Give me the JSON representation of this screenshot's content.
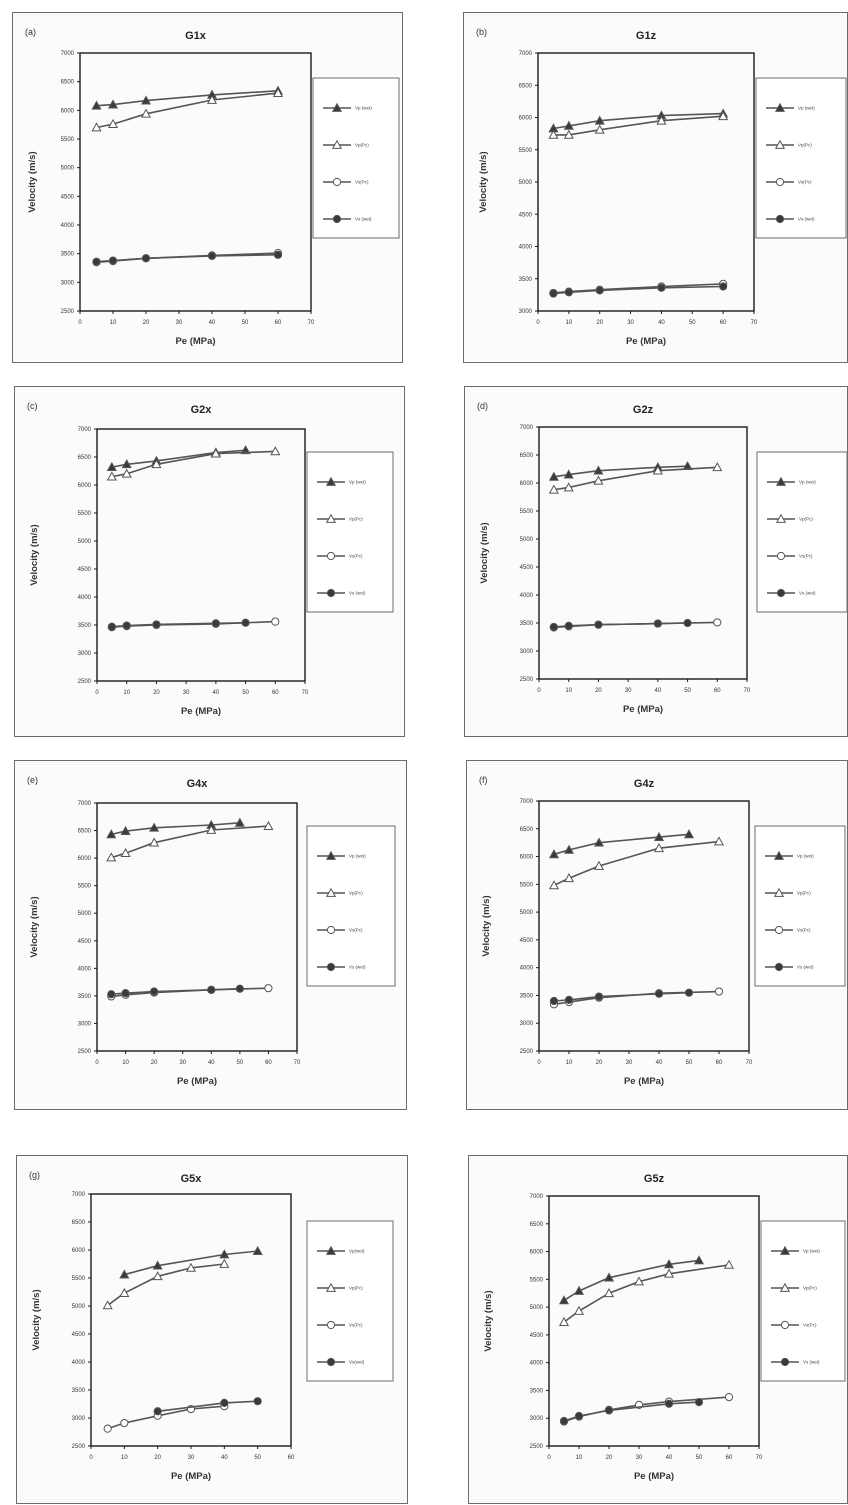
{
  "colors": {
    "series_line": "#555555",
    "marker_fill": "#3a3a3a",
    "open_marker": "#ffffff",
    "frame": "#6c6c6c"
  },
  "chart_data": [
    {
      "type": "line",
      "letter": "(a)",
      "title": "G1x",
      "xlabel": "Pe (MPa)",
      "ylabel": "Velocity (m/s)",
      "xlim": [
        0,
        70
      ],
      "ylim": [
        2500,
        7000
      ],
      "xticks": [
        0,
        10,
        20,
        30,
        40,
        50,
        60,
        70
      ],
      "yticks": [
        2500,
        3000,
        3500,
        4000,
        4500,
        5000,
        5500,
        6000,
        6500,
        7000
      ],
      "legend": [
        "Vp (wet)",
        "Vp(Pc)",
        "Vs(Pc)",
        "Vs (wet)"
      ],
      "series": [
        {
          "name": "Vp (wet)",
          "marker": "filled-triangle",
          "x": [
            5,
            10,
            20,
            40,
            60
          ],
          "y": [
            6080,
            6100,
            6170,
            6270,
            6340
          ]
        },
        {
          "name": "Vp(Pc)",
          "marker": "open-triangle",
          "x": [
            5,
            10,
            20,
            40,
            60
          ],
          "y": [
            5700,
            5760,
            5940,
            6180,
            6300
          ]
        },
        {
          "name": "Vs(Pc)",
          "marker": "open-circle",
          "x": [
            5,
            10,
            20,
            40,
            60
          ],
          "y": [
            3350,
            3370,
            3420,
            3470,
            3510
          ]
        },
        {
          "name": "Vs (wet)",
          "marker": "filled-circle",
          "x": [
            5,
            10,
            20,
            40,
            60
          ],
          "y": [
            3360,
            3380,
            3420,
            3460,
            3480
          ]
        }
      ]
    },
    {
      "type": "line",
      "letter": "(b)",
      "title": "G1z",
      "xlabel": "Pe (MPa)",
      "ylabel": "Velocity (m/s)",
      "xlim": [
        0,
        70
      ],
      "ylim": [
        3000,
        7000
      ],
      "xticks": [
        0,
        10,
        20,
        30,
        40,
        50,
        60,
        70
      ],
      "yticks": [
        3000,
        3500,
        4000,
        4500,
        5000,
        5500,
        6000,
        6500,
        7000
      ],
      "legend": [
        "Vp (wet)",
        "Vp(Pc)",
        "Vs(Pc)",
        "Vs (wet)"
      ],
      "series": [
        {
          "name": "Vp (wet)",
          "marker": "filled-triangle",
          "x": [
            5,
            10,
            20,
            40,
            60
          ],
          "y": [
            5830,
            5870,
            5950,
            6030,
            6060
          ]
        },
        {
          "name": "Vp(Pc)",
          "marker": "open-triangle",
          "x": [
            5,
            10,
            20,
            40,
            60
          ],
          "y": [
            5730,
            5730,
            5810,
            5950,
            6020
          ]
        },
        {
          "name": "Vs(Pc)",
          "marker": "open-circle",
          "x": [
            5,
            10,
            20,
            40,
            60
          ],
          "y": [
            3280,
            3300,
            3330,
            3380,
            3420
          ]
        },
        {
          "name": "Vs (wet)",
          "marker": "filled-circle",
          "x": [
            5,
            10,
            20,
            40,
            60
          ],
          "y": [
            3270,
            3290,
            3320,
            3360,
            3380
          ]
        }
      ]
    },
    {
      "type": "line",
      "letter": "(c)",
      "title": "G2x",
      "xlabel": "Pe (MPa)",
      "ylabel": "Velocity (m/s)",
      "xlim": [
        0,
        70
      ],
      "ylim": [
        2500,
        7000
      ],
      "xticks": [
        0,
        10,
        20,
        30,
        40,
        50,
        60,
        70
      ],
      "yticks": [
        2500,
        3000,
        3500,
        4000,
        4500,
        5000,
        5500,
        6000,
        6500,
        7000
      ],
      "legend": [
        "Vp (wet)",
        "Vp(Pc)",
        "Vs(Pc)",
        "Vs (wet)"
      ],
      "series": [
        {
          "name": "Vp (wet)",
          "marker": "filled-triangle",
          "x": [
            5,
            10,
            20,
            40,
            50
          ],
          "y": [
            6320,
            6370,
            6430,
            6580,
            6620
          ]
        },
        {
          "name": "Vp(Pc)",
          "marker": "open-triangle",
          "x": [
            5,
            10,
            20,
            40,
            60
          ],
          "y": [
            6150,
            6200,
            6370,
            6560,
            6600
          ]
        },
        {
          "name": "Vs(Pc)",
          "marker": "open-circle",
          "x": [
            5,
            10,
            20,
            40,
            60
          ],
          "y": [
            3460,
            3480,
            3500,
            3520,
            3560
          ]
        },
        {
          "name": "Vs (wet)",
          "marker": "filled-circle",
          "x": [
            5,
            10,
            20,
            40,
            50
          ],
          "y": [
            3470,
            3490,
            3510,
            3530,
            3540
          ]
        }
      ]
    },
    {
      "type": "line",
      "letter": "(d)",
      "title": "G2z",
      "xlabel": "Pe (MPa)",
      "ylabel": "Velocity (m/s)",
      "xlim": [
        0,
        70
      ],
      "ylim": [
        2500,
        7000
      ],
      "xticks": [
        0,
        10,
        20,
        30,
        40,
        50,
        60,
        70
      ],
      "yticks": [
        2500,
        3000,
        3500,
        4000,
        4500,
        5000,
        5500,
        6000,
        6500,
        7000
      ],
      "legend": [
        "Vp (wet)",
        "Vp(Pc)",
        "Vs(Pc)",
        "Vs (wet)"
      ],
      "series": [
        {
          "name": "Vp (wet)",
          "marker": "filled-triangle",
          "x": [
            5,
            10,
            20,
            40,
            50
          ],
          "y": [
            6110,
            6150,
            6220,
            6280,
            6300
          ]
        },
        {
          "name": "Vp(Pc)",
          "marker": "open-triangle",
          "x": [
            5,
            10,
            20,
            40,
            60
          ],
          "y": [
            5880,
            5920,
            6040,
            6220,
            6280
          ]
        },
        {
          "name": "Vs(Pc)",
          "marker": "open-circle",
          "x": [
            5,
            10,
            20,
            40,
            60
          ],
          "y": [
            3420,
            3440,
            3470,
            3490,
            3510
          ]
        },
        {
          "name": "Vs (wet)",
          "marker": "filled-circle",
          "x": [
            5,
            10,
            20,
            40,
            50
          ],
          "y": [
            3430,
            3450,
            3470,
            3490,
            3500
          ]
        }
      ]
    },
    {
      "type": "line",
      "letter": "(e)",
      "title": "G4x",
      "xlabel": "Pe (MPa)",
      "ylabel": "Velocity (m/s)",
      "xlim": [
        0,
        70
      ],
      "ylim": [
        2500,
        7000
      ],
      "xticks": [
        0,
        10,
        20,
        30,
        40,
        50,
        60,
        70
      ],
      "yticks": [
        2500,
        3000,
        3500,
        4000,
        4500,
        5000,
        5500,
        6000,
        6500,
        7000
      ],
      "legend": [
        "Vp (wet)",
        "Vp(Pc)",
        "Vs(Pc)",
        "Vs (wet)"
      ],
      "series": [
        {
          "name": "Vp (wet)",
          "marker": "filled-triangle",
          "x": [
            5,
            10,
            20,
            40,
            50
          ],
          "y": [
            6430,
            6490,
            6550,
            6600,
            6640
          ]
        },
        {
          "name": "Vp(Pc)",
          "marker": "open-triangle",
          "x": [
            5,
            10,
            20,
            40,
            60
          ],
          "y": [
            6010,
            6090,
            6280,
            6510,
            6580
          ]
        },
        {
          "name": "Vs(Pc)",
          "marker": "open-circle",
          "x": [
            5,
            10,
            20,
            40,
            60
          ],
          "y": [
            3490,
            3520,
            3560,
            3610,
            3640
          ]
        },
        {
          "name": "Vs (wet)",
          "marker": "filled-circle",
          "x": [
            5,
            10,
            20,
            40,
            50
          ],
          "y": [
            3530,
            3550,
            3580,
            3610,
            3630
          ]
        }
      ]
    },
    {
      "type": "line",
      "letter": "(f)",
      "title": "G4z",
      "xlabel": "Pe (MPa)",
      "ylabel": "Velocity (m/s)",
      "xlim": [
        0,
        70
      ],
      "ylim": [
        2500,
        7000
      ],
      "xticks": [
        0,
        10,
        20,
        30,
        40,
        50,
        60,
        70
      ],
      "yticks": [
        2500,
        3000,
        3500,
        4000,
        4500,
        5000,
        5500,
        6000,
        6500,
        7000
      ],
      "legend": [
        "Vp (wet)",
        "Vp(Pc)",
        "Vs(Pc)",
        "Vs (wet)"
      ],
      "series": [
        {
          "name": "Vp (wet)",
          "marker": "filled-triangle",
          "x": [
            5,
            10,
            20,
            40,
            50
          ],
          "y": [
            6040,
            6120,
            6250,
            6350,
            6400
          ]
        },
        {
          "name": "Vp(Pc)",
          "marker": "open-triangle",
          "x": [
            5,
            10,
            20,
            40,
            60
          ],
          "y": [
            5480,
            5610,
            5830,
            6150,
            6270
          ]
        },
        {
          "name": "Vs(Pc)",
          "marker": "open-circle",
          "x": [
            5,
            10,
            20,
            40,
            60
          ],
          "y": [
            3340,
            3380,
            3460,
            3540,
            3570
          ]
        },
        {
          "name": "Vs (wet)",
          "marker": "filled-circle",
          "x": [
            5,
            10,
            20,
            40,
            50
          ],
          "y": [
            3400,
            3420,
            3480,
            3530,
            3550
          ]
        }
      ]
    },
    {
      "type": "line",
      "letter": "(g)",
      "title": "G5x",
      "xlabel": "Pe (MPa)",
      "ylabel": "Velocity (m/s)",
      "xlim": [
        0,
        60
      ],
      "ylim": [
        2500,
        7000
      ],
      "xticks": [
        0,
        10,
        20,
        30,
        40,
        50,
        60
      ],
      "yticks": [
        2500,
        3000,
        3500,
        4000,
        4500,
        5000,
        5500,
        6000,
        6500,
        7000
      ],
      "legend": [
        "Vp(wet)",
        "Vp(Pc)",
        "Vs(Pc)",
        "Vs(wet)"
      ],
      "series": [
        {
          "name": "Vp(wet)",
          "marker": "filled-triangle",
          "x": [
            10,
            20,
            40,
            50
          ],
          "y": [
            5560,
            5720,
            5920,
            5980
          ]
        },
        {
          "name": "Vp(Pc)",
          "marker": "open-triangle",
          "x": [
            5,
            10,
            20,
            30,
            40
          ],
          "y": [
            5010,
            5230,
            5530,
            5680,
            5750
          ]
        },
        {
          "name": "Vs(Pc)",
          "marker": "open-circle",
          "x": [
            5,
            10,
            20,
            30,
            40
          ],
          "y": [
            2810,
            2910,
            3040,
            3160,
            3210
          ]
        },
        {
          "name": "Vs(wet)",
          "marker": "filled-circle",
          "x": [
            20,
            40,
            50
          ],
          "y": [
            3120,
            3270,
            3300
          ]
        }
      ]
    },
    {
      "type": "line",
      "letter": "",
      "title": "G5z",
      "xlabel": "Pe (MPa)",
      "ylabel": "Velocity (m/s)",
      "xlim": [
        0,
        70
      ],
      "ylim": [
        2500,
        7000
      ],
      "xticks": [
        0,
        10,
        20,
        30,
        40,
        50,
        60,
        70
      ],
      "yticks": [
        2500,
        3000,
        3500,
        4000,
        4500,
        5000,
        5500,
        6000,
        6500,
        7000
      ],
      "legend": [
        "Vp (wet)",
        "Vp(Pc)",
        "Vs(Pc)",
        "Vs (wet)"
      ],
      "series": [
        {
          "name": "Vp (wet)",
          "marker": "filled-triangle",
          "x": [
            5,
            10,
            20,
            40,
            50
          ],
          "y": [
            5120,
            5290,
            5530,
            5770,
            5840
          ]
        },
        {
          "name": "Vp(Pc)",
          "marker": "open-triangle",
          "x": [
            5,
            10,
            20,
            30,
            40,
            60
          ],
          "y": [
            4730,
            4930,
            5250,
            5460,
            5600,
            5760
          ]
        },
        {
          "name": "Vs(Pc)",
          "marker": "open-circle",
          "x": [
            5,
            10,
            20,
            30,
            40,
            60
          ],
          "y": [
            2940,
            3030,
            3150,
            3240,
            3300,
            3380
          ]
        },
        {
          "name": "Vs (wet)",
          "marker": "filled-circle",
          "x": [
            5,
            10,
            20,
            40,
            50
          ],
          "y": [
            2950,
            3040,
            3140,
            3260,
            3290
          ]
        }
      ]
    }
  ]
}
